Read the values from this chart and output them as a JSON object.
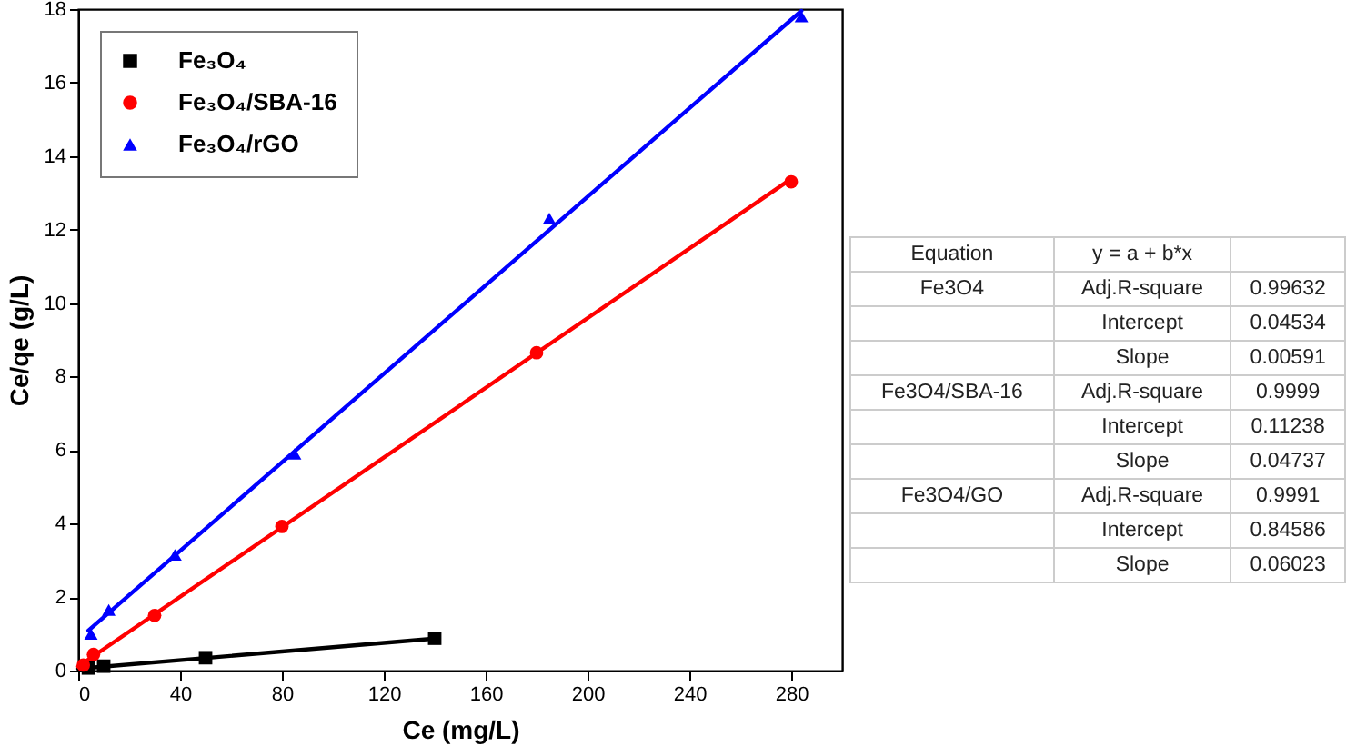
{
  "chart_data": {
    "type": "scatter",
    "xlabel": "Ce (mg/L)",
    "ylabel": "Ce/qe (g/L)",
    "xlim": [
      0,
      300
    ],
    "xticks": [
      0,
      40,
      80,
      120,
      160,
      200,
      240,
      280
    ],
    "ylim": [
      0,
      18
    ],
    "yticks": [
      0,
      2,
      4,
      6,
      8,
      10,
      12,
      14,
      16,
      18
    ],
    "grid": false,
    "legend": "top left",
    "line_style": "solid",
    "series": [
      {
        "name": "Fe₃O₄",
        "color": "#000000",
        "marker": "square",
        "x": [
          4,
          10,
          50,
          140
        ],
        "values": [
          0.07,
          0.12,
          0.35,
          0.88
        ]
      },
      {
        "name": "Fe₃O₄/SBA-16",
        "color": "#ff0000",
        "marker": "circle",
        "x": [
          2,
          6,
          30,
          80,
          180,
          280
        ],
        "values": [
          0.15,
          0.44,
          1.5,
          3.92,
          8.65,
          13.3
        ]
      },
      {
        "name": "Fe₃O₄/rGO",
        "color": "#0000ff",
        "marker": "triangle",
        "x": [
          5,
          12,
          38,
          85,
          185,
          284
        ],
        "values": [
          1.0,
          1.65,
          3.15,
          5.9,
          12.3,
          17.8
        ]
      },
      {
        "type": "line",
        "color": "#000000",
        "x": [
          0,
          140
        ],
        "values": [
          0.05,
          0.87
        ]
      },
      {
        "type": "line",
        "color": "#ff0000",
        "x": [
          0,
          280
        ],
        "values": [
          0.11,
          13.38
        ]
      },
      {
        "type": "line",
        "color": "#0000ff",
        "x": [
          4,
          284
        ],
        "values": [
          1.09,
          17.95
        ]
      }
    ],
    "annotations": [
      "Equation",
      "y = a + b*x",
      null,
      "Fe3O4",
      "Adj.R-square",
      "0.99632",
      null,
      "Intercept",
      "0.04534",
      null,
      "Slope",
      "0.00591",
      "Fe3O4/SBA-16",
      "Adj.R-square",
      "0.9999",
      null,
      "Intercept",
      "0.11238",
      null,
      "Slope",
      "0.04737",
      "Fe3O4/GO",
      "Adj.R-square",
      "0.9991",
      null,
      "Intercept",
      "0.84586",
      null,
      "Slope",
      "0.06023"
    ]
  }
}
